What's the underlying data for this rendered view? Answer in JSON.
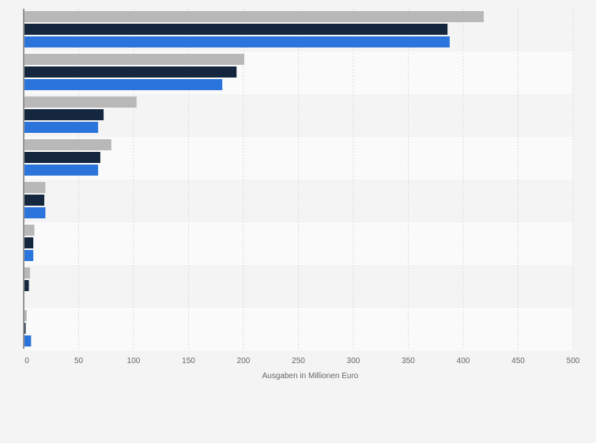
{
  "chart_data": {
    "type": "bar",
    "orientation": "horizontal",
    "title": "",
    "xlabel": "Ausgaben in Millionen Euro",
    "ylabel": "",
    "xlim": [
      0,
      500
    ],
    "xticks": [
      "0",
      "50",
      "100",
      "150",
      "200",
      "250",
      "300",
      "350",
      "400",
      "450",
      "500"
    ],
    "grid": true,
    "legend": "none",
    "categories": [
      "",
      "",
      "",
      "",
      "",
      "",
      "",
      ""
    ],
    "series": [
      {
        "color": "#b8b8b8",
        "values": [
          418,
          200,
          102,
          79,
          19,
          9,
          5,
          2
        ]
      },
      {
        "color": "#14273e",
        "values": [
          385,
          193,
          72,
          69,
          18,
          8,
          4,
          1
        ]
      },
      {
        "color": "#2a74dc",
        "values": [
          387,
          180,
          67,
          67,
          19,
          8,
          0,
          6
        ]
      }
    ]
  }
}
